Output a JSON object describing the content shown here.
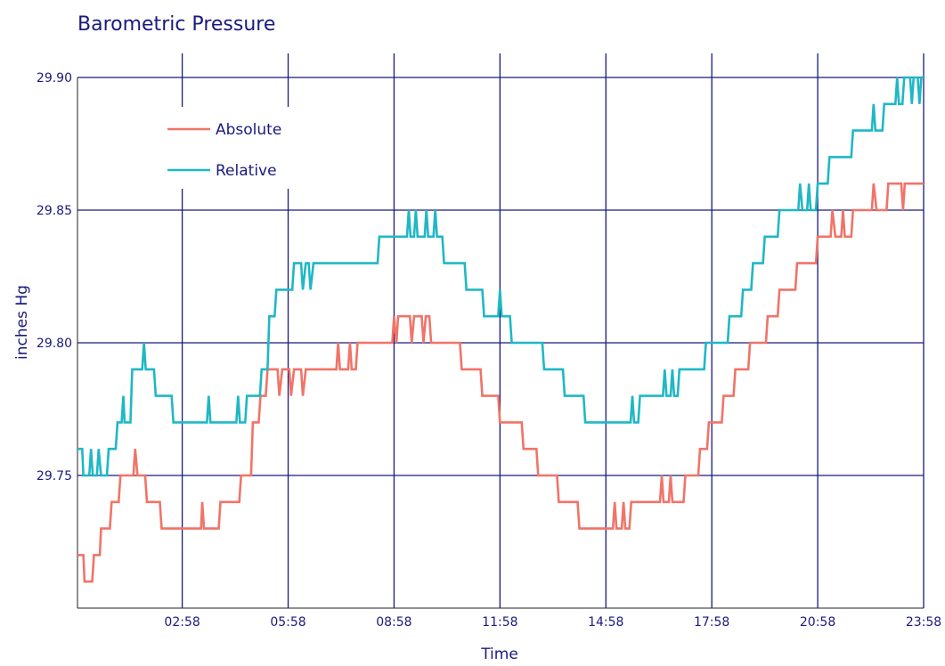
{
  "chart_data": {
    "type": "line",
    "title": "Barometric Pressure",
    "xlabel": "Time",
    "ylabel": "inches Hg",
    "ylim": [
      29.7,
      29.9
    ],
    "xlim": [
      "00:00",
      "23:58"
    ],
    "y_ticks": [
      "29.75",
      "29.80",
      "29.85",
      "29.90"
    ],
    "x_ticks": [
      "02:58",
      "05:58",
      "08:58",
      "11:58",
      "14:58",
      "17:58",
      "20:58",
      "23:58"
    ],
    "grid": true,
    "legend_position": "top-left",
    "colors": {
      "text": "#1a1a7e",
      "grid": "#1a1a7e",
      "axis": "#222222",
      "background": "#ffffff"
    },
    "series": [
      {
        "name": "Absolute",
        "color": "#f07468",
        "points": [
          [
            "00:00",
            29.72
          ],
          [
            "00:10",
            29.72
          ],
          [
            "00:12",
            29.71
          ],
          [
            "00:25",
            29.71
          ],
          [
            "00:28",
            29.72
          ],
          [
            "00:38",
            29.72
          ],
          [
            "00:40",
            29.73
          ],
          [
            "00:55",
            29.73
          ],
          [
            "00:58",
            29.74
          ],
          [
            "01:10",
            29.74
          ],
          [
            "01:13",
            29.75
          ],
          [
            "01:35",
            29.75
          ],
          [
            "01:38",
            29.76
          ],
          [
            "01:42",
            29.75
          ],
          [
            "01:55",
            29.75
          ],
          [
            "01:58",
            29.74
          ],
          [
            "02:20",
            29.74
          ],
          [
            "02:23",
            29.73
          ],
          [
            "03:30",
            29.73
          ],
          [
            "03:32",
            29.74
          ],
          [
            "03:35",
            29.73
          ],
          [
            "04:00",
            29.73
          ],
          [
            "04:03",
            29.74
          ],
          [
            "04:35",
            29.74
          ],
          [
            "04:38",
            29.75
          ],
          [
            "04:55",
            29.75
          ],
          [
            "04:58",
            29.77
          ],
          [
            "05:08",
            29.77
          ],
          [
            "05:11",
            29.78
          ],
          [
            "05:20",
            29.78
          ],
          [
            "05:23",
            29.79
          ],
          [
            "05:40",
            29.79
          ],
          [
            "05:43",
            29.78
          ],
          [
            "05:48",
            29.79
          ],
          [
            "06:00",
            29.79
          ],
          [
            "06:03",
            29.78
          ],
          [
            "06:08",
            29.79
          ],
          [
            "06:20",
            29.79
          ],
          [
            "06:23",
            29.78
          ],
          [
            "06:28",
            29.79
          ],
          [
            "07:20",
            29.79
          ],
          [
            "07:23",
            29.8
          ],
          [
            "07:26",
            29.79
          ],
          [
            "07:40",
            29.79
          ],
          [
            "07:43",
            29.8
          ],
          [
            "07:46",
            29.79
          ],
          [
            "07:53",
            29.79
          ],
          [
            "07:56",
            29.8
          ],
          [
            "08:55",
            29.8
          ],
          [
            "08:58",
            29.81
          ],
          [
            "09:02",
            29.8
          ],
          [
            "09:05",
            29.81
          ],
          [
            "09:25",
            29.81
          ],
          [
            "09:28",
            29.8
          ],
          [
            "09:32",
            29.81
          ],
          [
            "09:45",
            29.81
          ],
          [
            "09:48",
            29.8
          ],
          [
            "09:52",
            29.81
          ],
          [
            "09:58",
            29.81
          ],
          [
            "10:01",
            29.8
          ],
          [
            "10:50",
            29.8
          ],
          [
            "10:53",
            29.79
          ],
          [
            "11:25",
            29.79
          ],
          [
            "11:28",
            29.78
          ],
          [
            "11:55",
            29.78
          ],
          [
            "11:58",
            29.77
          ],
          [
            "12:35",
            29.77
          ],
          [
            "12:38",
            29.76
          ],
          [
            "13:00",
            29.76
          ],
          [
            "13:03",
            29.75
          ],
          [
            "13:35",
            29.75
          ],
          [
            "13:38",
            29.74
          ],
          [
            "14:10",
            29.74
          ],
          [
            "14:13",
            29.73
          ],
          [
            "15:10",
            29.73
          ],
          [
            "15:13",
            29.74
          ],
          [
            "15:16",
            29.73
          ],
          [
            "15:25",
            29.73
          ],
          [
            "15:28",
            29.74
          ],
          [
            "15:31",
            29.73
          ],
          [
            "15:38",
            29.73
          ],
          [
            "15:41",
            29.74
          ],
          [
            "16:30",
            29.74
          ],
          [
            "16:33",
            29.75
          ],
          [
            "16:36",
            29.74
          ],
          [
            "16:45",
            29.74
          ],
          [
            "16:48",
            29.75
          ],
          [
            "16:51",
            29.74
          ],
          [
            "17:10",
            29.74
          ],
          [
            "17:13",
            29.75
          ],
          [
            "17:35",
            29.75
          ],
          [
            "17:38",
            29.76
          ],
          [
            "17:50",
            29.76
          ],
          [
            "17:53",
            29.77
          ],
          [
            "18:15",
            29.77
          ],
          [
            "18:18",
            29.78
          ],
          [
            "18:35",
            29.78
          ],
          [
            "18:38",
            29.79
          ],
          [
            "19:00",
            29.79
          ],
          [
            "19:03",
            29.8
          ],
          [
            "19:30",
            29.8
          ],
          [
            "19:33",
            29.81
          ],
          [
            "19:50",
            29.81
          ],
          [
            "19:53",
            29.82
          ],
          [
            "20:20",
            29.82
          ],
          [
            "20:23",
            29.83
          ],
          [
            "20:55",
            29.83
          ],
          [
            "20:58",
            29.84
          ],
          [
            "21:20",
            29.84
          ],
          [
            "21:23",
            29.85
          ],
          [
            "21:28",
            29.84
          ],
          [
            "21:38",
            29.84
          ],
          [
            "21:41",
            29.85
          ],
          [
            "21:44",
            29.84
          ],
          [
            "21:55",
            29.84
          ],
          [
            "21:58",
            29.85
          ],
          [
            "22:30",
            29.85
          ],
          [
            "22:33",
            29.86
          ],
          [
            "22:38",
            29.85
          ],
          [
            "22:55",
            29.85
          ],
          [
            "22:58",
            29.86
          ],
          [
            "23:20",
            29.86
          ],
          [
            "23:23",
            29.85
          ],
          [
            "23:26",
            29.86
          ],
          [
            "23:58",
            29.86
          ]
        ]
      },
      {
        "name": "Relative",
        "color": "#1fb8c4",
        "points": [
          [
            "00:00",
            29.76
          ],
          [
            "00:08",
            29.76
          ],
          [
            "00:10",
            29.75
          ],
          [
            "00:20",
            29.75
          ],
          [
            "00:23",
            29.76
          ],
          [
            "00:26",
            29.75
          ],
          [
            "00:33",
            29.75
          ],
          [
            "00:36",
            29.76
          ],
          [
            "00:40",
            29.75
          ],
          [
            "00:50",
            29.75
          ],
          [
            "00:53",
            29.76
          ],
          [
            "01:05",
            29.76
          ],
          [
            "01:08",
            29.77
          ],
          [
            "01:15",
            29.77
          ],
          [
            "01:18",
            29.78
          ],
          [
            "01:20",
            29.77
          ],
          [
            "01:30",
            29.77
          ],
          [
            "01:33",
            29.79
          ],
          [
            "01:50",
            29.79
          ],
          [
            "01:53",
            29.8
          ],
          [
            "01:56",
            29.79
          ],
          [
            "02:10",
            29.79
          ],
          [
            "02:13",
            29.78
          ],
          [
            "02:40",
            29.78
          ],
          [
            "02:43",
            29.77
          ],
          [
            "03:40",
            29.77
          ],
          [
            "03:43",
            29.78
          ],
          [
            "03:46",
            29.77
          ],
          [
            "04:30",
            29.77
          ],
          [
            "04:33",
            29.78
          ],
          [
            "04:36",
            29.77
          ],
          [
            "04:45",
            29.77
          ],
          [
            "04:48",
            29.78
          ],
          [
            "05:10",
            29.78
          ],
          [
            "05:13",
            29.79
          ],
          [
            "05:23",
            29.79
          ],
          [
            "05:26",
            29.81
          ],
          [
            "05:35",
            29.81
          ],
          [
            "05:38",
            29.82
          ],
          [
            "06:05",
            29.82
          ],
          [
            "06:08",
            29.83
          ],
          [
            "06:20",
            29.83
          ],
          [
            "06:23",
            29.82
          ],
          [
            "06:28",
            29.83
          ],
          [
            "06:33",
            29.83
          ],
          [
            "06:36",
            29.82
          ],
          [
            "06:41",
            29.83
          ],
          [
            "08:30",
            29.83
          ],
          [
            "08:33",
            29.84
          ],
          [
            "09:20",
            29.84
          ],
          [
            "09:23",
            29.85
          ],
          [
            "09:26",
            29.84
          ],
          [
            "09:32",
            29.84
          ],
          [
            "09:35",
            29.85
          ],
          [
            "09:38",
            29.84
          ],
          [
            "09:50",
            29.84
          ],
          [
            "09:53",
            29.85
          ],
          [
            "09:56",
            29.84
          ],
          [
            "10:05",
            29.84
          ],
          [
            "10:08",
            29.85
          ],
          [
            "10:11",
            29.84
          ],
          [
            "10:20",
            29.84
          ],
          [
            "10:23",
            29.83
          ],
          [
            "10:58",
            29.83
          ],
          [
            "11:01",
            29.82
          ],
          [
            "11:28",
            29.82
          ],
          [
            "11:31",
            29.81
          ],
          [
            "11:55",
            29.81
          ],
          [
            "11:58",
            29.82
          ],
          [
            "12:01",
            29.81
          ],
          [
            "12:15",
            29.81
          ],
          [
            "12:18",
            29.8
          ],
          [
            "13:10",
            29.8
          ],
          [
            "13:13",
            29.79
          ],
          [
            "13:45",
            29.79
          ],
          [
            "13:48",
            29.78
          ],
          [
            "14:20",
            29.78
          ],
          [
            "14:23",
            29.77
          ],
          [
            "15:40",
            29.77
          ],
          [
            "15:43",
            29.78
          ],
          [
            "15:46",
            29.77
          ],
          [
            "15:53",
            29.77
          ],
          [
            "15:56",
            29.78
          ],
          [
            "16:35",
            29.78
          ],
          [
            "16:38",
            29.79
          ],
          [
            "16:41",
            29.78
          ],
          [
            "16:48",
            29.78
          ],
          [
            "16:51",
            29.79
          ],
          [
            "16:54",
            29.78
          ],
          [
            "17:00",
            29.78
          ],
          [
            "17:03",
            29.79
          ],
          [
            "17:45",
            29.79
          ],
          [
            "17:48",
            29.8
          ],
          [
            "18:25",
            29.8
          ],
          [
            "18:28",
            29.81
          ],
          [
            "18:48",
            29.81
          ],
          [
            "18:51",
            29.82
          ],
          [
            "19:05",
            29.82
          ],
          [
            "19:08",
            29.83
          ],
          [
            "19:25",
            29.83
          ],
          [
            "19:28",
            29.84
          ],
          [
            "19:50",
            29.84
          ],
          [
            "19:53",
            29.85
          ],
          [
            "20:25",
            29.85
          ],
          [
            "20:28",
            29.86
          ],
          [
            "20:32",
            29.85
          ],
          [
            "20:40",
            29.85
          ],
          [
            "20:43",
            29.86
          ],
          [
            "20:46",
            29.85
          ],
          [
            "20:55",
            29.85
          ],
          [
            "20:58",
            29.86
          ],
          [
            "21:15",
            29.86
          ],
          [
            "21:18",
            29.87
          ],
          [
            "21:55",
            29.87
          ],
          [
            "21:58",
            29.88
          ],
          [
            "22:30",
            29.88
          ],
          [
            "22:33",
            29.89
          ],
          [
            "22:36",
            29.88
          ],
          [
            "22:48",
            29.88
          ],
          [
            "22:51",
            29.89
          ],
          [
            "23:10",
            29.89
          ],
          [
            "23:13",
            29.9
          ],
          [
            "23:16",
            29.89
          ],
          [
            "23:22",
            29.89
          ],
          [
            "23:25",
            29.9
          ],
          [
            "23:35",
            29.9
          ],
          [
            "23:38",
            29.89
          ],
          [
            "23:41",
            29.9
          ],
          [
            "23:48",
            29.9
          ],
          [
            "23:51",
            29.89
          ],
          [
            "23:54",
            29.9
          ],
          [
            "23:58",
            29.9
          ]
        ]
      }
    ]
  }
}
